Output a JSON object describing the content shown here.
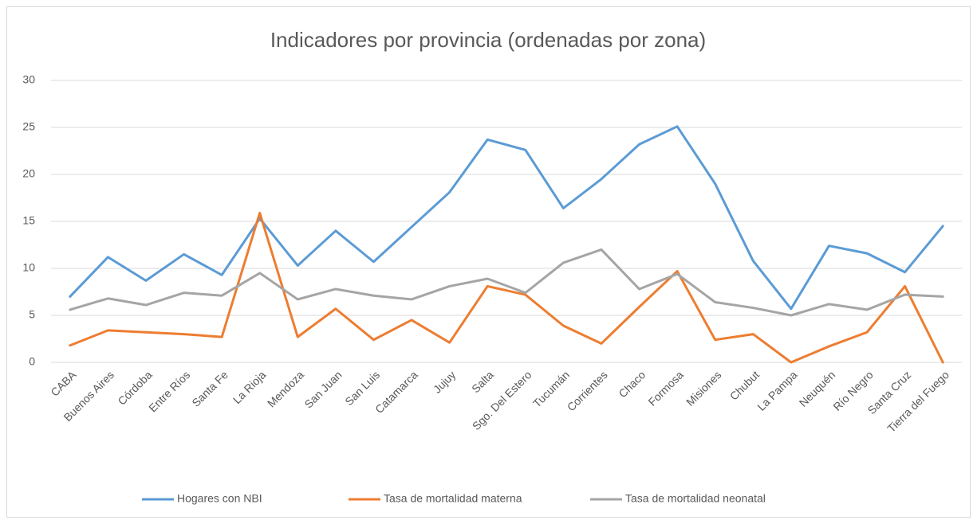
{
  "chart_data": {
    "type": "line",
    "title": "Indicadores por provincia (ordenadas por zona)",
    "categories": [
      "CABA",
      "Buenos Aires",
      "Córdoba",
      "Entre Ríos",
      "Santa Fe",
      "La Rioja",
      "Mendoza",
      "San Juan",
      "San Luis",
      "Catamarca",
      "Jujuy",
      "Salta",
      "Sgo. Del Estero",
      "Tucumán",
      "Corrientes",
      "Chaco",
      "Formosa",
      "Misiones",
      "Chubut",
      "La Pampa",
      "Neuquén",
      "Río Negro",
      "Santa Cruz",
      "Tierra del Fuego"
    ],
    "series": [
      {
        "name": "Hogares con NBI",
        "color": "#5b9bd5",
        "values": [
          7.0,
          11.2,
          8.7,
          11.5,
          9.3,
          15.3,
          10.3,
          14.0,
          10.7,
          14.4,
          18.1,
          23.7,
          22.6,
          16.4,
          19.5,
          23.2,
          25.1,
          19.0,
          10.8,
          5.7,
          12.4,
          11.6,
          9.6,
          14.5
        ]
      },
      {
        "name": "Tasa de mortalidad materna",
        "color": "#ed7d31",
        "values": [
          1.8,
          3.4,
          3.2,
          3.0,
          2.7,
          15.9,
          2.7,
          5.7,
          2.4,
          4.5,
          2.1,
          8.1,
          7.2,
          3.9,
          2.0,
          5.9,
          9.7,
          2.4,
          3.0,
          0.0,
          1.7,
          3.2,
          8.1,
          0.0
        ]
      },
      {
        "name": "Tasa de mortalidad neonatal",
        "color": "#a5a5a5",
        "values": [
          5.6,
          6.8,
          6.1,
          7.4,
          7.1,
          9.5,
          6.7,
          7.8,
          7.1,
          6.7,
          8.1,
          8.9,
          7.4,
          10.6,
          12.0,
          7.8,
          9.4,
          6.4,
          5.8,
          5.0,
          6.2,
          5.6,
          7.2,
          7.0
        ]
      }
    ],
    "ylim": [
      0,
      30
    ],
    "yticks": [
      0,
      5,
      10,
      15,
      20,
      25,
      30
    ],
    "grid": true,
    "legend": "bottom"
  }
}
